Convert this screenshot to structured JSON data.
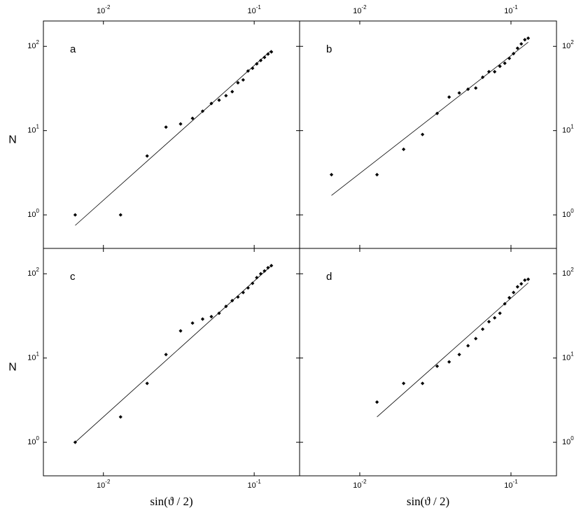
{
  "chart_data": [
    {
      "type": "scatter",
      "label": "a",
      "color": "#000000",
      "log_x": true,
      "log_y": true,
      "xtick_side": "top",
      "ytick_side": "left",
      "ylabel": "N",
      "x": [
        0.0065,
        0.013,
        0.0195,
        0.026,
        0.0325,
        0.039,
        0.0455,
        0.052,
        0.0585,
        0.065,
        0.0715,
        0.078,
        0.0845,
        0.091,
        0.0975,
        0.104,
        0.1105,
        0.117,
        0.1235,
        0.13
      ],
      "values": [
        1,
        1,
        5,
        11,
        12,
        14,
        17,
        21,
        23,
        26,
        29,
        37,
        40,
        51,
        55,
        62,
        68,
        74,
        81,
        86
      ],
      "fit_x": [
        0.0065,
        0.13
      ],
      "fit_y": [
        0.75,
        90
      ],
      "xlim": [
        0.004,
        0.2
      ],
      "ylim": [
        0.4,
        200
      ],
      "xticks": [
        {
          "value": 0.01,
          "label": "10",
          "exponent": "-2"
        },
        {
          "value": 0.1,
          "label": "10",
          "exponent": "-1"
        }
      ],
      "yticks": [
        {
          "value": 1,
          "label": "10",
          "exponent": "0"
        },
        {
          "value": 10,
          "label": "10",
          "exponent": "1"
        },
        {
          "value": 100,
          "label": "10",
          "exponent": "2"
        }
      ]
    },
    {
      "type": "scatter",
      "label": "b",
      "color": "#000000",
      "log_x": true,
      "log_y": true,
      "xtick_side": "top",
      "ytick_side": "right",
      "x": [
        0.0065,
        0.013,
        0.0195,
        0.026,
        0.0325,
        0.039,
        0.0455,
        0.052,
        0.0585,
        0.065,
        0.0715,
        0.078,
        0.0845,
        0.091,
        0.0975,
        0.104,
        0.1105,
        0.117,
        0.1235,
        0.13
      ],
      "values": [
        3,
        3,
        6,
        9,
        16,
        25,
        28,
        31,
        32,
        43,
        50,
        50,
        58,
        63,
        72,
        82,
        95,
        107,
        120,
        125
      ],
      "fit_x": [
        0.0065,
        0.13
      ],
      "fit_y": [
        1.7,
        112
      ],
      "xlim": [
        0.004,
        0.2
      ],
      "ylim": [
        0.4,
        200
      ],
      "xticks": [
        {
          "value": 0.01,
          "label": "10",
          "exponent": "-2"
        },
        {
          "value": 0.1,
          "label": "10",
          "exponent": "-1"
        }
      ],
      "yticks": [
        {
          "value": 1,
          "label": "10",
          "exponent": "0"
        },
        {
          "value": 10,
          "label": "10",
          "exponent": "1"
        },
        {
          "value": 100,
          "label": "10",
          "exponent": "2"
        }
      ]
    },
    {
      "type": "scatter",
      "label": "c",
      "color": "#000000",
      "log_x": true,
      "log_y": true,
      "xtick_side": "bottom",
      "ytick_side": "left",
      "ylabel": "N",
      "xlabel": "sin(ϑ / 2)",
      "x": [
        0.0065,
        0.013,
        0.0195,
        0.026,
        0.0325,
        0.039,
        0.0455,
        0.052,
        0.0585,
        0.065,
        0.0715,
        0.078,
        0.0845,
        0.091,
        0.0975,
        0.104,
        0.1105,
        0.117,
        0.1235,
        0.13
      ],
      "values": [
        1,
        2,
        5,
        11,
        21,
        26,
        29,
        31,
        34,
        41,
        48,
        53,
        60,
        68,
        77,
        90,
        100,
        108,
        118,
        125
      ],
      "fit_x": [
        0.0065,
        0.13
      ],
      "fit_y": [
        1,
        125
      ],
      "xlim": [
        0.004,
        0.2
      ],
      "ylim": [
        0.4,
        200
      ],
      "xticks": [
        {
          "value": 0.01,
          "label": "10",
          "exponent": "-2"
        },
        {
          "value": 0.1,
          "label": "10",
          "exponent": "-1"
        }
      ],
      "yticks": [
        {
          "value": 1,
          "label": "10",
          "exponent": "0"
        },
        {
          "value": 10,
          "label": "10",
          "exponent": "1"
        },
        {
          "value": 100,
          "label": "10",
          "exponent": "2"
        }
      ]
    },
    {
      "type": "scatter",
      "label": "d",
      "color": "#000000",
      "log_x": true,
      "log_y": true,
      "xtick_side": "bottom",
      "ytick_side": "right",
      "xlabel": "sin(ϑ / 2)",
      "x": [
        0.013,
        0.0195,
        0.026,
        0.0325,
        0.039,
        0.0455,
        0.052,
        0.0585,
        0.065,
        0.0715,
        0.078,
        0.0845,
        0.091,
        0.0975,
        0.104,
        0.1105,
        0.117,
        0.1235,
        0.13
      ],
      "values": [
        3,
        5,
        5,
        8,
        9,
        11,
        14,
        17,
        22,
        27,
        30,
        34,
        44,
        52,
        60,
        70,
        76,
        84,
        86
      ],
      "fit_x": [
        0.013,
        0.13
      ],
      "fit_y": [
        2,
        78
      ],
      "xlim": [
        0.004,
        0.2
      ],
      "ylim": [
        0.4,
        200
      ],
      "xticks": [
        {
          "value": 0.01,
          "label": "10",
          "exponent": "-2"
        },
        {
          "value": 0.1,
          "label": "10",
          "exponent": "-1"
        }
      ],
      "yticks": [
        {
          "value": 1,
          "label": "10",
          "exponent": "0"
        },
        {
          "value": 10,
          "label": "10",
          "exponent": "1"
        },
        {
          "value": 100,
          "label": "10",
          "exponent": "2"
        }
      ]
    }
  ]
}
